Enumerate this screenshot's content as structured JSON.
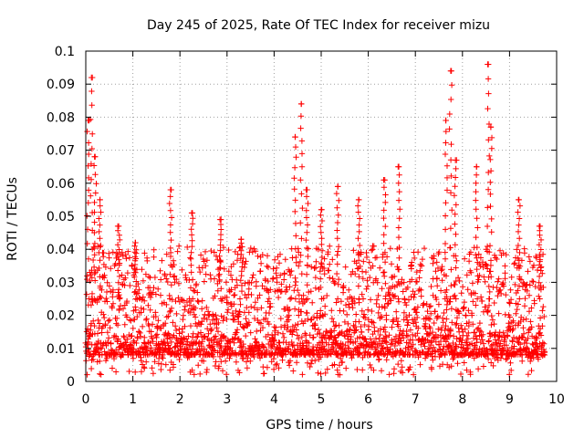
{
  "chart_data": {
    "type": "scatter",
    "title": "Day 245 of 2025, Rate Of TEC Index for receiver mizu",
    "xlabel": "GPS time / hours",
    "ylabel": "ROTI / TECUs",
    "xlim": [
      0,
      10
    ],
    "ylim": [
      0,
      0.1
    ],
    "xticks": [
      0,
      1,
      2,
      3,
      4,
      5,
      6,
      7,
      8,
      9,
      10
    ],
    "xtick_labels": [
      "0",
      "1",
      "2",
      "3",
      "4",
      "5",
      "6",
      "7",
      "8",
      "9",
      "10"
    ],
    "yticks": [
      0,
      0.01,
      0.02,
      0.03,
      0.04,
      0.05,
      0.06,
      0.07,
      0.08,
      0.09,
      0.1
    ],
    "ytick_labels": [
      "0",
      "0.01",
      "0.02",
      "0.03",
      "0.04",
      "0.05",
      "0.06",
      "0.07",
      "0.08",
      "0.09",
      "0.1"
    ],
    "grid": true,
    "marker": "+",
    "series": [
      {
        "name": "ROTI",
        "color": "#ff0000",
        "x_range": [
          0,
          9.75
        ],
        "baseline_range": [
          0.002,
          0.035
        ],
        "peaks": [
          {
            "x": 0.05,
            "y": 0.079
          },
          {
            "x": 0.12,
            "y": 0.092
          },
          {
            "x": 0.2,
            "y": 0.068
          },
          {
            "x": 0.3,
            "y": 0.055
          },
          {
            "x": 0.7,
            "y": 0.047
          },
          {
            "x": 1.05,
            "y": 0.042
          },
          {
            "x": 1.8,
            "y": 0.058
          },
          {
            "x": 2.25,
            "y": 0.051
          },
          {
            "x": 2.85,
            "y": 0.049
          },
          {
            "x": 3.3,
            "y": 0.043
          },
          {
            "x": 4.45,
            "y": 0.074
          },
          {
            "x": 4.58,
            "y": 0.084
          },
          {
            "x": 4.7,
            "y": 0.058
          },
          {
            "x": 5.0,
            "y": 0.052
          },
          {
            "x": 5.35,
            "y": 0.059
          },
          {
            "x": 5.8,
            "y": 0.055
          },
          {
            "x": 6.35,
            "y": 0.061
          },
          {
            "x": 6.65,
            "y": 0.065
          },
          {
            "x": 7.65,
            "y": 0.079
          },
          {
            "x": 7.75,
            "y": 0.094
          },
          {
            "x": 7.85,
            "y": 0.067
          },
          {
            "x": 8.3,
            "y": 0.065
          },
          {
            "x": 8.55,
            "y": 0.096
          },
          {
            "x": 8.6,
            "y": 0.077
          },
          {
            "x": 9.2,
            "y": 0.055
          },
          {
            "x": 9.65,
            "y": 0.047
          }
        ]
      }
    ]
  }
}
